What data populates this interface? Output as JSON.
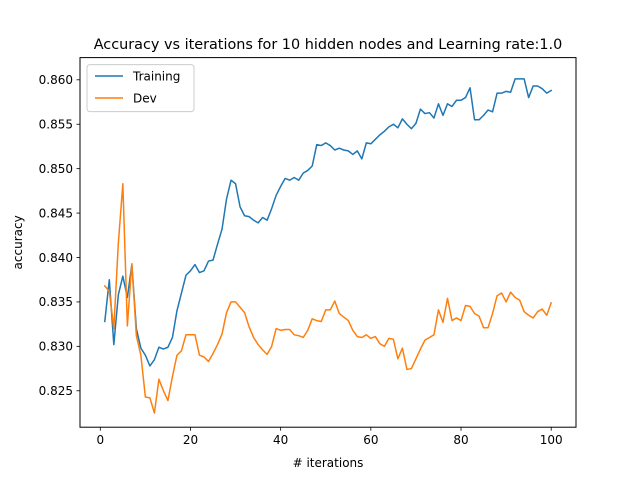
{
  "chart_data": {
    "type": "line",
    "title": "Accuracy vs iterations for 10 hidden nodes and Learning rate:1.0",
    "xlabel": "# iterations",
    "ylabel": "accuracy",
    "xlim": [
      -4.5,
      105.5
    ],
    "ylim": [
      0.8209,
      0.8625
    ],
    "xticks": [
      0,
      20,
      40,
      60,
      80,
      100
    ],
    "xtick_labels": [
      "0",
      "20",
      "40",
      "60",
      "80",
      "100"
    ],
    "yticks": [
      0.825,
      0.83,
      0.835,
      0.84,
      0.845,
      0.85,
      0.855,
      0.86
    ],
    "ytick_labels": [
      "0.825",
      "0.830",
      "0.835",
      "0.840",
      "0.845",
      "0.850",
      "0.855",
      "0.860"
    ],
    "grid": false,
    "legend_position": "upper-left",
    "x": [
      1,
      2,
      3,
      4,
      5,
      6,
      7,
      8,
      9,
      10,
      11,
      12,
      13,
      14,
      15,
      16,
      17,
      18,
      19,
      20,
      21,
      22,
      23,
      24,
      25,
      26,
      27,
      28,
      29,
      30,
      31,
      32,
      33,
      34,
      35,
      36,
      37,
      38,
      39,
      40,
      41,
      42,
      43,
      44,
      45,
      46,
      47,
      48,
      49,
      50,
      51,
      52,
      53,
      54,
      55,
      56,
      57,
      58,
      59,
      60,
      61,
      62,
      63,
      64,
      65,
      66,
      67,
      68,
      69,
      70,
      71,
      72,
      73,
      74,
      75,
      76,
      77,
      78,
      79,
      80,
      81,
      82,
      83,
      84,
      85,
      86,
      87,
      88,
      89,
      90,
      91,
      92,
      93,
      94,
      95,
      96,
      97,
      98,
      99,
      100
    ],
    "series": [
      {
        "name": "Training",
        "color": "#1f77b4",
        "values": [
          0.8328,
          0.8375,
          0.8302,
          0.8358,
          0.8379,
          0.8355,
          0.8392,
          0.832,
          0.8298,
          0.829,
          0.8278,
          0.8285,
          0.8299,
          0.8297,
          0.8299,
          0.831,
          0.834,
          0.836,
          0.838,
          0.8385,
          0.8392,
          0.8383,
          0.8385,
          0.8396,
          0.8397,
          0.8415,
          0.8432,
          0.8466,
          0.8487,
          0.8483,
          0.8457,
          0.8447,
          0.8446,
          0.8442,
          0.8439,
          0.8445,
          0.8442,
          0.8455,
          0.847,
          0.848,
          0.8489,
          0.8487,
          0.849,
          0.8487,
          0.8495,
          0.8498,
          0.8503,
          0.8527,
          0.8526,
          0.8529,
          0.8526,
          0.8521,
          0.8523,
          0.8521,
          0.852,
          0.8516,
          0.852,
          0.8511,
          0.8529,
          0.8528,
          0.8533,
          0.8538,
          0.8542,
          0.8547,
          0.855,
          0.8546,
          0.8556,
          0.855,
          0.8545,
          0.8551,
          0.8567,
          0.8562,
          0.8563,
          0.8557,
          0.8573,
          0.856,
          0.8573,
          0.857,
          0.8577,
          0.8577,
          0.858,
          0.8591,
          0.8555,
          0.8555,
          0.856,
          0.8566,
          0.8564,
          0.8585,
          0.8585,
          0.8587,
          0.8586,
          0.8601,
          0.8601,
          0.8601,
          0.858,
          0.8593,
          0.8593,
          0.859,
          0.8585,
          0.8588
        ]
      },
      {
        "name": "Dev",
        "color": "#ff7f0e",
        "values": [
          0.8368,
          0.8362,
          0.832,
          0.8416,
          0.8483,
          0.8323,
          0.8393,
          0.8312,
          0.829,
          0.8243,
          0.8242,
          0.8225,
          0.8263,
          0.825,
          0.8239,
          0.8266,
          0.829,
          0.8295,
          0.8313,
          0.8313,
          0.8313,
          0.829,
          0.8288,
          0.8283,
          0.8292,
          0.8302,
          0.8314,
          0.8338,
          0.835,
          0.835,
          0.8344,
          0.8338,
          0.8322,
          0.831,
          0.8302,
          0.8296,
          0.8291,
          0.83,
          0.832,
          0.8318,
          0.8319,
          0.8319,
          0.8313,
          0.8312,
          0.831,
          0.8318,
          0.8331,
          0.8329,
          0.8328,
          0.8341,
          0.8341,
          0.8351,
          0.8337,
          0.8333,
          0.8329,
          0.8318,
          0.8311,
          0.831,
          0.8313,
          0.8309,
          0.8311,
          0.8303,
          0.83,
          0.8309,
          0.8308,
          0.8286,
          0.8298,
          0.8274,
          0.8275,
          0.8286,
          0.8297,
          0.8307,
          0.831,
          0.8313,
          0.8341,
          0.8327,
          0.8354,
          0.8329,
          0.8332,
          0.8329,
          0.8346,
          0.8345,
          0.8337,
          0.8334,
          0.8321,
          0.8321,
          0.8337,
          0.8357,
          0.836,
          0.835,
          0.8361,
          0.8355,
          0.8352,
          0.8339,
          0.8335,
          0.8332,
          0.8339,
          0.8342,
          0.8335,
          0.8349
        ]
      }
    ]
  }
}
